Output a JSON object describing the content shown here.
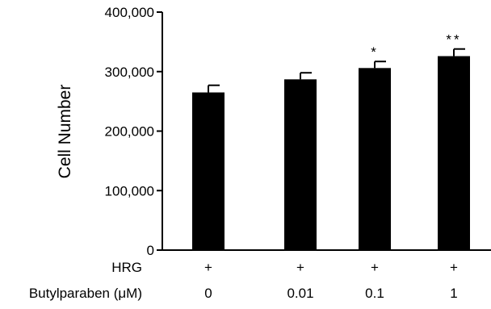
{
  "chart_data": {
    "type": "bar",
    "title": "",
    "xlabel": "",
    "ylabel": "Cell Number",
    "ylim": [
      0,
      400000
    ],
    "yticks": [
      0,
      100000,
      200000,
      300000,
      400000
    ],
    "ytick_labels": [
      "0",
      "100,000",
      "200,000",
      "300,000",
      "400,000"
    ],
    "grid": false,
    "legend": "none",
    "bar_color": "#000000",
    "categories": [
      "0",
      "0.01",
      "0.1",
      "1"
    ],
    "values": [
      265000,
      287000,
      306000,
      326000
    ],
    "errors": [
      12000,
      11000,
      11000,
      12000
    ],
    "significance": [
      "",
      "",
      "*",
      "**"
    ],
    "condition_rows": [
      {
        "label": "HRG",
        "values": [
          "+",
          "+",
          "+",
          "+"
        ]
      },
      {
        "label": "Butylparaben (μM)",
        "values": [
          "0",
          "0.01",
          "0.1",
          "1"
        ]
      }
    ]
  }
}
